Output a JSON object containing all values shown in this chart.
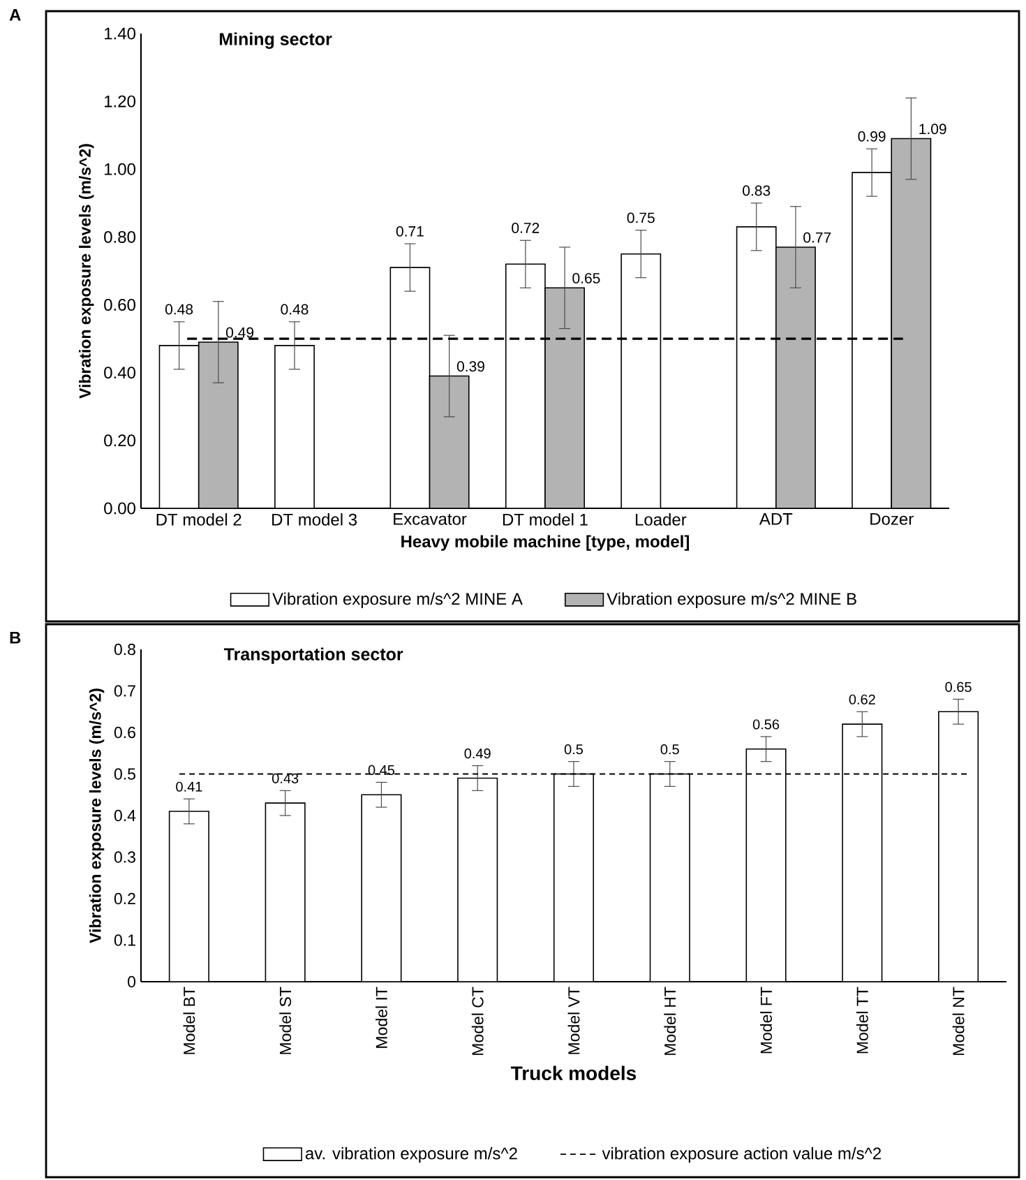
{
  "chart_data": [
    {
      "type": "bar",
      "title": "Mining sector",
      "xlabel": "Heavy mobile machine [type, model]",
      "ylabel": "Vibration exposure levels (m/s^2)",
      "annotations": [
        "A"
      ],
      "categories": [
        "DT model 2",
        "DT model 3",
        "Excavator",
        "DT model 1",
        "Loader",
        "ADT",
        "Dozer"
      ],
      "series": [
        {
          "name": "Vibration exposure m/s^2 MINE A",
          "color": "#ffffff",
          "values": [
            0.48,
            0.48,
            0.71,
            0.72,
            0.75,
            0.83,
            0.99
          ],
          "value_labels": [
            "0.48",
            "0.48",
            "0.71",
            "0.72",
            "0.75",
            "0.83",
            "0.99"
          ],
          "errors": [
            0.07,
            0.07,
            0.07,
            0.07,
            0.07,
            0.07,
            0.07
          ]
        },
        {
          "name": "Vibration exposure m/s^2 MINE B",
          "color": "#b3b3b3",
          "values": [
            0.49,
            null,
            0.39,
            0.65,
            null,
            0.77,
            1.09
          ],
          "value_labels": [
            "0.49",
            null,
            "0.39",
            "0.65",
            null,
            "0.77",
            "1.09"
          ],
          "errors": [
            0.12,
            null,
            0.12,
            0.12,
            null,
            0.12,
            0.12
          ]
        }
      ],
      "ylim": [
        0,
        1.4
      ],
      "yticks": [
        {
          "value": 0,
          "label": "0.00"
        },
        {
          "value": 0.2,
          "label": "0.20"
        },
        {
          "value": 0.4,
          "label": "0.40"
        },
        {
          "value": 0.6,
          "label": "0.60"
        },
        {
          "value": 0.8,
          "label": "0.80"
        },
        {
          "value": 1.0,
          "label": "1.00"
        },
        {
          "value": 1.2,
          "label": "1.20"
        },
        {
          "value": 1.4,
          "label": "1.40"
        }
      ],
      "ref_lines": [
        {
          "axis": "y",
          "value": 0.5,
          "color": "#000000",
          "line_style": "dashed"
        }
      ],
      "legend": "bottom"
    },
    {
      "type": "bar",
      "title": "Transportation sector",
      "xlabel": "Truck models",
      "ylabel": "Vibration exposure levels (m/s^2)",
      "annotations": [
        "B"
      ],
      "categories": [
        "Model BT",
        "Model ST",
        "Model IT",
        "Model CT",
        "Model VT",
        "Model HT",
        "Model FT",
        "Model TT",
        "Model NT"
      ],
      "series": [
        {
          "name": "av. vibration exposure m/s^2",
          "color": "#ffffff",
          "values": [
            0.41,
            0.43,
            0.45,
            0.49,
            0.5,
            0.5,
            0.56,
            0.62,
            0.65
          ],
          "errors": [
            0.03,
            0.03,
            0.03,
            0.03,
            0.03,
            0.03,
            0.03,
            0.03,
            0.03
          ]
        }
      ],
      "ylim": [
        0,
        0.8
      ],
      "yticks": [
        0,
        0.1,
        0.2,
        0.3,
        0.4,
        0.5,
        0.6,
        0.7,
        0.8
      ],
      "ref_lines": [
        {
          "axis": "y",
          "value": 0.5,
          "color": "#000000",
          "line_style": "dashed",
          "label": "vibration exposure action value m/s^2"
        }
      ],
      "data_labels": true,
      "legend": "bottom"
    }
  ]
}
